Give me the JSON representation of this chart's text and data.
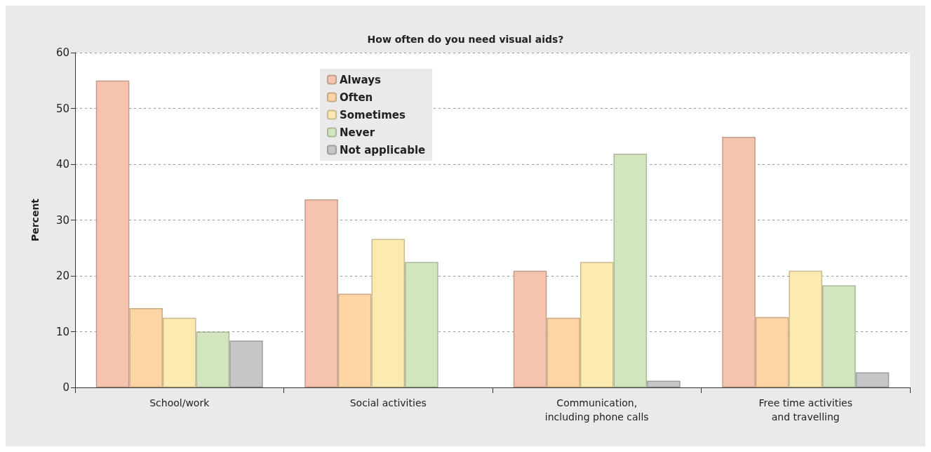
{
  "chart_data": {
    "type": "bar",
    "title": "How often do you need visual aids?",
    "ylabel": "Percent",
    "categories": [
      "School/work",
      "Social activities",
      "Communication,\nincluding phone calls",
      "Free time activities\nand travelling"
    ],
    "series": [
      {
        "name": "Always",
        "color": "#f4c4ae",
        "values": [
          55,
          33.7,
          20.9,
          44.9
        ]
      },
      {
        "name": "Often",
        "color": "#fdd4a4",
        "values": [
          14.2,
          16.8,
          12.5,
          12.6
        ]
      },
      {
        "name": "Sometimes",
        "color": "#fdeab0",
        "values": [
          12.5,
          26.6,
          22.5,
          20.9
        ]
      },
      {
        "name": "Never",
        "color": "#d3e5be",
        "values": [
          10,
          22.5,
          41.9,
          18.3
        ]
      },
      {
        "name": "Not applicable",
        "color": "#c4c6c8",
        "values": [
          8.4,
          null,
          1.2,
          2.7
        ]
      }
    ],
    "ylim": [
      0,
      60
    ],
    "yticks": [
      0,
      10,
      20,
      30,
      40,
      50,
      60
    ],
    "grid": "y",
    "legend": "top"
  }
}
